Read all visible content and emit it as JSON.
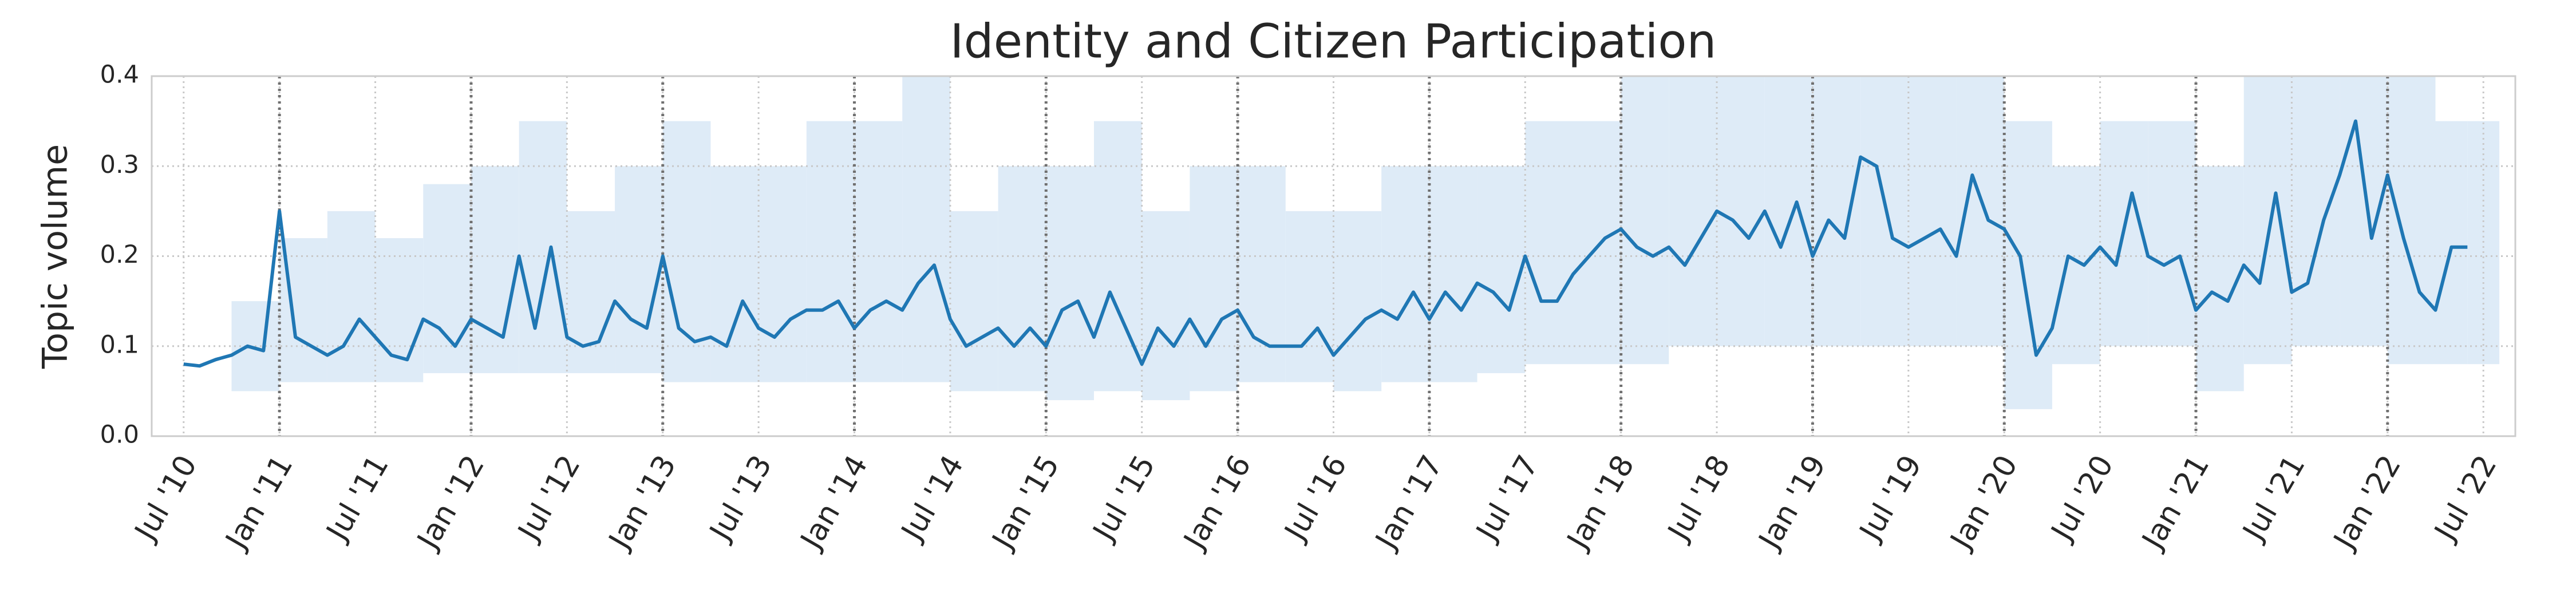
{
  "chart_data": {
    "type": "line",
    "title": "Identity and Citizen Participation",
    "y_label": "Topic volume",
    "xlim": [
      "2010-05",
      "2022-09"
    ],
    "xticks": [
      {
        "value": "2010-07",
        "label": "Jul '10"
      },
      {
        "value": "2011-01",
        "label": "Jan '11"
      },
      {
        "value": "2011-07",
        "label": "Jul '11"
      },
      {
        "value": "2012-01",
        "label": "Jan '12"
      },
      {
        "value": "2012-07",
        "label": "Jul '12"
      },
      {
        "value": "2013-01",
        "label": "Jan '13"
      },
      {
        "value": "2013-07",
        "label": "Jul '13"
      },
      {
        "value": "2014-01",
        "label": "Jan '14"
      },
      {
        "value": "2014-07",
        "label": "Jul '14"
      },
      {
        "value": "2015-01",
        "label": "Jan '15"
      },
      {
        "value": "2015-07",
        "label": "Jul '15"
      },
      {
        "value": "2016-01",
        "label": "Jan '16"
      },
      {
        "value": "2016-07",
        "label": "Jul '16"
      },
      {
        "value": "2017-01",
        "label": "Jan '17"
      },
      {
        "value": "2017-07",
        "label": "Jul '17"
      },
      {
        "value": "2018-01",
        "label": "Jan '18"
      },
      {
        "value": "2018-07",
        "label": "Jul '18"
      },
      {
        "value": "2019-01",
        "label": "Jan '19"
      },
      {
        "value": "2019-07",
        "label": "Jul '19"
      },
      {
        "value": "2020-01",
        "label": "Jan '20"
      },
      {
        "value": "2020-07",
        "label": "Jul '20"
      },
      {
        "value": "2021-01",
        "label": "Jan '21"
      },
      {
        "value": "2021-07",
        "label": "Jul '21"
      },
      {
        "value": "2022-01",
        "label": "Jan '22"
      },
      {
        "value": "2022-07",
        "label": "Jul '22"
      }
    ],
    "ylim": [
      0,
      0.4
    ],
    "yticks": [
      {
        "value": 0,
        "label": "0.0"
      },
      0.1,
      0.2,
      0.3,
      0.4
    ],
    "grid": true,
    "vlines": [
      "2011-01",
      "2012-01",
      "2013-01",
      "2014-01",
      "2015-01",
      "2016-01",
      "2017-01",
      "2018-01",
      "2019-01",
      "2020-01",
      "2021-01",
      "2022-01"
    ],
    "vline_color": "#707070",
    "x": [
      "2010-07",
      "2010-08",
      "2010-09",
      "2010-10",
      "2010-11",
      "2010-12",
      "2011-01",
      "2011-02",
      "2011-03",
      "2011-04",
      "2011-05",
      "2011-06",
      "2011-07",
      "2011-08",
      "2011-09",
      "2011-10",
      "2011-11",
      "2011-12",
      "2012-01",
      "2012-02",
      "2012-03",
      "2012-04",
      "2012-05",
      "2012-06",
      "2012-07",
      "2012-08",
      "2012-09",
      "2012-10",
      "2012-11",
      "2012-12",
      "2013-01",
      "2013-02",
      "2013-03",
      "2013-04",
      "2013-05",
      "2013-06",
      "2013-07",
      "2013-08",
      "2013-09",
      "2013-10",
      "2013-11",
      "2013-12",
      "2014-01",
      "2014-02",
      "2014-03",
      "2014-04",
      "2014-05",
      "2014-06",
      "2014-07",
      "2014-08",
      "2014-09",
      "2014-10",
      "2014-11",
      "2014-12",
      "2015-01",
      "2015-02",
      "2015-03",
      "2015-04",
      "2015-05",
      "2015-06",
      "2015-07",
      "2015-08",
      "2015-09",
      "2015-10",
      "2015-11",
      "2015-12",
      "2016-01",
      "2016-02",
      "2016-03",
      "2016-04",
      "2016-05",
      "2016-06",
      "2016-07",
      "2016-08",
      "2016-09",
      "2016-10",
      "2016-11",
      "2016-12",
      "2017-01",
      "2017-02",
      "2017-03",
      "2017-04",
      "2017-05",
      "2017-06",
      "2017-07",
      "2017-08",
      "2017-09",
      "2017-10",
      "2017-11",
      "2017-12",
      "2018-01",
      "2018-02",
      "2018-03",
      "2018-04",
      "2018-05",
      "2018-06",
      "2018-07",
      "2018-08",
      "2018-09",
      "2018-10",
      "2018-11",
      "2018-12",
      "2019-01",
      "2019-02",
      "2019-03",
      "2019-04",
      "2019-05",
      "2019-06",
      "2019-07",
      "2019-08",
      "2019-09",
      "2019-10",
      "2019-11",
      "2019-12",
      "2020-01",
      "2020-02",
      "2020-03",
      "2020-04",
      "2020-05",
      "2020-06",
      "2020-07",
      "2020-08",
      "2020-09",
      "2020-10",
      "2020-11",
      "2020-12",
      "2021-01",
      "2021-02",
      "2021-03",
      "2021-04",
      "2021-05",
      "2021-06",
      "2021-07",
      "2021-08",
      "2021-09",
      "2021-10",
      "2021-11",
      "2021-12",
      "2022-01",
      "2022-02",
      "2022-03",
      "2022-04",
      "2022-05",
      "2022-06"
    ],
    "series": [
      {
        "color": "#1f77b4",
        "values": [
          0.08,
          0.078,
          0.085,
          0.09,
          0.1,
          0.095,
          0.25,
          0.11,
          0.1,
          0.09,
          0.1,
          0.13,
          0.11,
          0.09,
          0.085,
          0.13,
          0.12,
          0.1,
          0.13,
          0.12,
          0.11,
          0.2,
          0.12,
          0.21,
          0.11,
          0.1,
          0.105,
          0.15,
          0.13,
          0.12,
          0.2,
          0.12,
          0.105,
          0.11,
          0.1,
          0.15,
          0.12,
          0.11,
          0.13,
          0.14,
          0.14,
          0.15,
          0.12,
          0.14,
          0.15,
          0.14,
          0.17,
          0.19,
          0.13,
          0.1,
          0.11,
          0.12,
          0.1,
          0.12,
          0.1,
          0.14,
          0.15,
          0.11,
          0.16,
          0.12,
          0.08,
          0.12,
          0.1,
          0.13,
          0.1,
          0.13,
          0.14,
          0.11,
          0.1,
          0.1,
          0.1,
          0.12,
          0.09,
          0.11,
          0.13,
          0.14,
          0.13,
          0.16,
          0.13,
          0.16,
          0.14,
          0.17,
          0.16,
          0.14,
          0.2,
          0.15,
          0.15,
          0.18,
          0.2,
          0.22,
          0.23,
          0.21,
          0.2,
          0.21,
          0.19,
          0.22,
          0.25,
          0.24,
          0.22,
          0.25,
          0.21,
          0.26,
          0.2,
          0.24,
          0.22,
          0.31,
          0.3,
          0.22,
          0.21,
          0.22,
          0.23,
          0.2,
          0.29,
          0.24,
          0.23,
          0.2,
          0.09,
          0.12,
          0.2,
          0.19,
          0.21,
          0.19,
          0.27,
          0.2,
          0.19,
          0.2,
          0.14,
          0.16,
          0.15,
          0.19,
          0.17,
          0.27,
          0.16,
          0.17,
          0.24,
          0.29,
          0.35,
          0.22,
          0.29,
          0.22,
          0.16,
          0.14,
          0.21,
          0.21
        ]
      }
    ],
    "band": {
      "color": "#deebf7",
      "x": [
        "2010-10",
        "2011-01",
        "2011-04",
        "2011-07",
        "2011-10",
        "2012-01",
        "2012-04",
        "2012-07",
        "2012-10",
        "2013-01",
        "2013-04",
        "2013-07",
        "2013-10",
        "2014-01",
        "2014-04",
        "2014-07",
        "2014-10",
        "2015-01",
        "2015-04",
        "2015-07",
        "2015-10",
        "2016-01",
        "2016-04",
        "2016-07",
        "2016-10",
        "2017-01",
        "2017-04",
        "2017-07",
        "2017-10",
        "2018-01",
        "2018-04",
        "2018-07",
        "2018-10",
        "2019-01",
        "2019-04",
        "2019-07",
        "2019-10",
        "2020-01",
        "2020-04",
        "2020-07",
        "2020-10",
        "2021-01",
        "2021-04",
        "2021-07",
        "2021-10",
        "2022-01",
        "2022-04",
        "2022-06"
      ],
      "low": [
        0.05,
        0.06,
        0.06,
        0.06,
        0.07,
        0.07,
        0.07,
        0.07,
        0.07,
        0.06,
        0.06,
        0.06,
        0.06,
        0.06,
        0.06,
        0.05,
        0.05,
        0.04,
        0.05,
        0.04,
        0.05,
        0.06,
        0.06,
        0.05,
        0.06,
        0.06,
        0.07,
        0.08,
        0.08,
        0.08,
        0.1,
        0.1,
        0.1,
        0.1,
        0.1,
        0.1,
        0.1,
        0.03,
        0.08,
        0.1,
        0.1,
        0.05,
        0.08,
        0.1,
        0.1,
        0.08,
        0.08,
        0.08
      ],
      "high": [
        0.15,
        0.22,
        0.25,
        0.22,
        0.28,
        0.3,
        0.35,
        0.25,
        0.3,
        0.35,
        0.3,
        0.3,
        0.35,
        0.35,
        0.4,
        0.25,
        0.3,
        0.3,
        0.35,
        0.25,
        0.3,
        0.3,
        0.25,
        0.25,
        0.3,
        0.3,
        0.3,
        0.35,
        0.35,
        0.4,
        0.4,
        0.4,
        0.4,
        0.4,
        0.4,
        0.4,
        0.4,
        0.35,
        0.3,
        0.35,
        0.35,
        0.3,
        0.4,
        0.4,
        0.4,
        0.4,
        0.35,
        0.35
      ]
    }
  }
}
